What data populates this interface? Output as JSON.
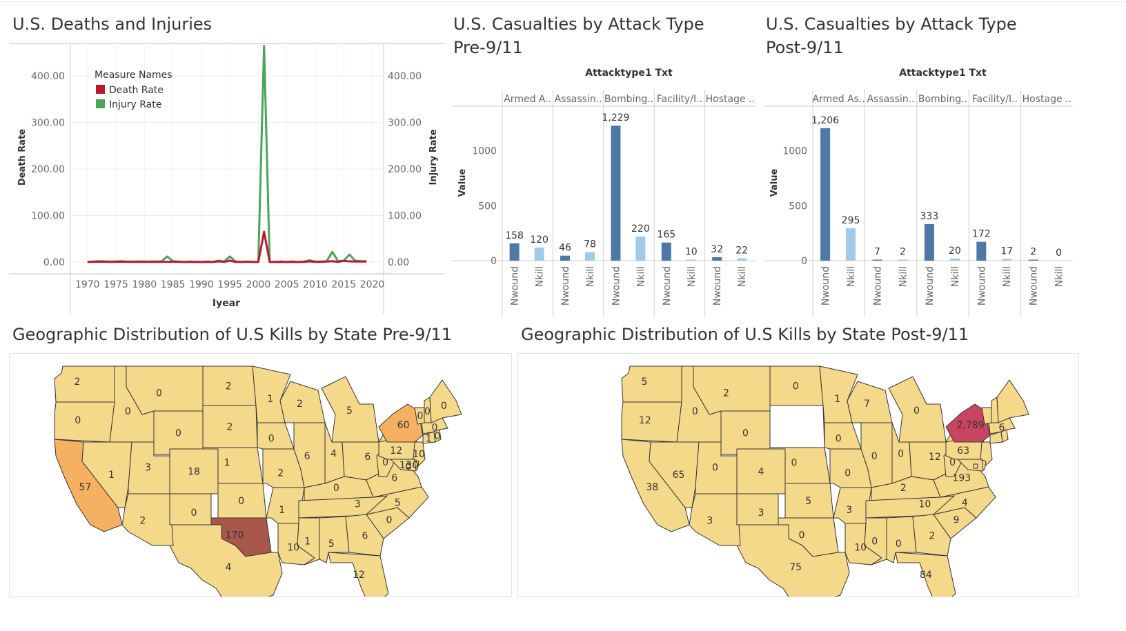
{
  "line_chart": {
    "title": "U.S. Deaths and Injuries",
    "legend_title": "Measure Names",
    "chart_data": {
      "type": "line",
      "title": "U.S. Deaths and Injuries",
      "xlabel": "Iyear",
      "ylabel": "Death Rate",
      "ylabel_right": "Injury Rate",
      "ylim": [
        0,
        470
      ],
      "xlim": [
        1967,
        2022
      ],
      "y_ticks": [
        "0.00",
        "100.00",
        "200.00",
        "300.00",
        "400.00"
      ],
      "y_tick_values": [
        0,
        100,
        200,
        300,
        400
      ],
      "x_ticks": [
        "1970",
        "1975",
        "1980",
        "1985",
        "1990",
        "1995",
        "2000",
        "2005",
        "2010",
        "2015",
        "2020"
      ],
      "x_tick_values": [
        1970,
        1975,
        1980,
        1985,
        1990,
        1995,
        2000,
        2005,
        2010,
        2015,
        2020
      ],
      "legend_position": "top-left",
      "grid": true,
      "series": [
        {
          "name": "Death Rate",
          "color": "#c0152f",
          "x": [
            1970,
            1971,
            1972,
            1973,
            1974,
            1975,
            1976,
            1977,
            1978,
            1979,
            1980,
            1981,
            1982,
            1983,
            1984,
            1985,
            1986,
            1987,
            1988,
            1989,
            1990,
            1991,
            1992,
            1993,
            1994,
            1995,
            1996,
            1997,
            1998,
            1999,
            2000,
            2001,
            2002,
            2003,
            2004,
            2005,
            2006,
            2007,
            2008,
            2009,
            2010,
            2011,
            2012,
            2013,
            2014,
            2015,
            2016,
            2017,
            2018,
            2019
          ],
          "values": [
            0.3,
            0.5,
            0.8,
            0.6,
            0.4,
            0.5,
            0.7,
            0.4,
            0.3,
            0.5,
            0.4,
            0.3,
            0.5,
            0.4,
            0.6,
            0.8,
            0.3,
            0.2,
            0.3,
            0.2,
            0.2,
            0.3,
            0.2,
            1.5,
            0.3,
            3,
            0.3,
            0.2,
            0.4,
            0.3,
            0.2,
            65,
            0.3,
            0.2,
            0.3,
            0.2,
            0.3,
            0.2,
            0.4,
            1.5,
            0.5,
            0.3,
            1,
            2,
            0.5,
            2.5,
            1.5,
            1.2,
            1,
            1.2
          ]
        },
        {
          "name": "Injury Rate",
          "color": "#4aa459",
          "x": [
            1970,
            1971,
            1972,
            1973,
            1974,
            1975,
            1976,
            1977,
            1978,
            1979,
            1980,
            1981,
            1982,
            1983,
            1984,
            1985,
            1986,
            1987,
            1988,
            1989,
            1990,
            1991,
            1992,
            1993,
            1994,
            1995,
            1996,
            1997,
            1998,
            1999,
            2000,
            2001,
            2002,
            2003,
            2004,
            2005,
            2006,
            2007,
            2008,
            2009,
            2010,
            2011,
            2012,
            2013,
            2014,
            2015,
            2016,
            2017,
            2018,
            2019
          ],
          "values": [
            0.5,
            1,
            2,
            1.5,
            1,
            1.5,
            2,
            1,
            1,
            1.5,
            1,
            1,
            1.5,
            1,
            12,
            2,
            1,
            0.5,
            1,
            0.5,
            0.5,
            1,
            0.5,
            3,
            1,
            12,
            1,
            0.5,
            1,
            0.5,
            0.5,
            465,
            0.5,
            0.5,
            1,
            0.5,
            1,
            0.5,
            1,
            4,
            1,
            1,
            2,
            22,
            2,
            3,
            16,
            3,
            2,
            2
          ]
        }
      ]
    }
  },
  "bar_pre": {
    "title": "U.S. Casualties by Attack Type Pre-9/11",
    "title_lines": [
      "U.S. Casualties by Attack Type",
      "Pre-9/11"
    ],
    "header": "Attacktype1 Txt",
    "chart_data": {
      "type": "bar",
      "title": "U.S. Casualties by Attack Type Pre-9/11",
      "ylabel": "Value",
      "ylim": [
        0,
        1400
      ],
      "y_ticks": [
        "0",
        "500",
        "1000"
      ],
      "y_tick_values": [
        0,
        500,
        1000
      ],
      "groups": [
        "Armed A..",
        "Assassin..",
        "Bombing..",
        "Facility/I..",
        "Hostage .."
      ],
      "measures": [
        "Nwound",
        "Nkill"
      ],
      "values": [
        [
          158,
          120
        ],
        [
          46,
          78
        ],
        [
          1229,
          220
        ],
        [
          165,
          10
        ],
        [
          32,
          22
        ]
      ],
      "labels": [
        [
          "158",
          "120"
        ],
        [
          "46",
          "78"
        ],
        [
          "1,229",
          "220"
        ],
        [
          "165",
          "10"
        ],
        [
          "32",
          "22"
        ]
      ],
      "colors": {
        "Nwound": "#4e79a7",
        "Nkill": "#a0cbe8"
      }
    }
  },
  "bar_post": {
    "title": "U.S. Casualties by Attack Type Post-9/11",
    "title_lines": [
      "U.S. Casualties by Attack Type",
      "Post-9/11"
    ],
    "header": "Attacktype1 Txt",
    "chart_data": {
      "type": "bar",
      "title": "U.S. Casualties by Attack Type Post-9/11",
      "ylabel": "Value",
      "ylim": [
        0,
        1400
      ],
      "y_ticks": [
        "0",
        "500",
        "1000"
      ],
      "y_tick_values": [
        0,
        500,
        1000
      ],
      "groups": [
        "Armed As..",
        "Assassin..",
        "Bombing..",
        "Facility/I..",
        "Hostage .."
      ],
      "measures": [
        "Nwound",
        "Nkill"
      ],
      "values": [
        [
          1206,
          295
        ],
        [
          7,
          2
        ],
        [
          333,
          20
        ],
        [
          172,
          17
        ],
        [
          2,
          0
        ]
      ],
      "labels": [
        [
          "1,206",
          "295"
        ],
        [
          "7",
          "2"
        ],
        [
          "333",
          "20"
        ],
        [
          "172",
          "17"
        ],
        [
          "2",
          "0"
        ]
      ],
      "colors": {
        "Nwound": "#4e79a7",
        "Nkill": "#a0cbe8"
      }
    }
  },
  "map_pre": {
    "title": "Geographic Distribution of U.S Kills by State Pre-9/11",
    "labels": [
      {
        "text": "2",
        "state": "WA"
      },
      {
        "text": "0",
        "state": "OR"
      },
      {
        "text": "0",
        "state": "ID"
      },
      {
        "text": "0",
        "state": "MT"
      },
      {
        "text": "0",
        "state": "WY"
      },
      {
        "text": "2",
        "state": "ND"
      },
      {
        "text": "2",
        "state": "SD"
      },
      {
        "text": "1",
        "state": "NE"
      },
      {
        "text": "0",
        "state": "KS"
      },
      {
        "text": "1",
        "state": "MN"
      },
      {
        "text": "0",
        "state": "IA"
      },
      {
        "text": "2",
        "state": "WI"
      },
      {
        "text": "5",
        "state": "MI"
      },
      {
        "text": "6",
        "state": "IL"
      },
      {
        "text": "4",
        "state": "IN"
      },
      {
        "text": "6",
        "state": "OH"
      },
      {
        "text": "12",
        "state": "PA"
      },
      {
        "text": "60",
        "state": "NY"
      },
      {
        "text": "0",
        "state": "VT"
      },
      {
        "text": "0",
        "state": "NH"
      },
      {
        "text": "0",
        "state": "ME"
      },
      {
        "text": "0",
        "state": "MA"
      },
      {
        "text": "1",
        "state": "CT"
      },
      {
        "text": "0",
        "state": "RI"
      },
      {
        "text": "10",
        "state": "NJ"
      },
      {
        "text": "57",
        "state": "CA"
      },
      {
        "text": "1",
        "state": "NV"
      },
      {
        "text": "3",
        "state": "UT"
      },
      {
        "text": "18",
        "state": "CO"
      },
      {
        "text": "2",
        "state": "AZ"
      },
      {
        "text": "0",
        "state": "NM"
      },
      {
        "text": "170",
        "state": "OK"
      },
      {
        "text": "4",
        "state": "TX"
      },
      {
        "text": "2",
        "state": "MO"
      },
      {
        "text": "1",
        "state": "AR"
      },
      {
        "text": "10",
        "state": "LA"
      },
      {
        "text": "1",
        "state": "MS"
      },
      {
        "text": "5",
        "state": "AL"
      },
      {
        "text": "6",
        "state": "GA"
      },
      {
        "text": "12",
        "state": "FL"
      },
      {
        "text": "3",
        "state": "TN"
      },
      {
        "text": "0",
        "state": "KY"
      },
      {
        "text": "6",
        "state": "VA"
      },
      {
        "text": "0",
        "state": "WV"
      },
      {
        "text": "5",
        "state": "NC"
      },
      {
        "text": "0",
        "state": "SC"
      },
      {
        "text": "0",
        "state": "DE"
      },
      {
        "text": "13",
        "state": "MD"
      },
      {
        "text": "0",
        "state": "DC"
      }
    ],
    "colors": {
      "low": "#f5d98a",
      "mid": "#f5b062",
      "high": "#a8574a"
    }
  },
  "map_post": {
    "title": "Geographic Distribution of U.S Kills by State Post-9/11",
    "labels": [
      {
        "text": "5",
        "state": "WA"
      },
      {
        "text": "12",
        "state": "OR"
      },
      {
        "text": "0",
        "state": "ID"
      },
      {
        "text": "2",
        "state": "MT"
      },
      {
        "text": "0",
        "state": "WY"
      },
      {
        "text": "0",
        "state": "ND"
      },
      {
        "text": "0",
        "state": "NE"
      },
      {
        "text": "5",
        "state": "KS"
      },
      {
        "text": "1",
        "state": "MN"
      },
      {
        "text": "0",
        "state": "IA"
      },
      {
        "text": "7",
        "state": "WI"
      },
      {
        "text": "0",
        "state": "MI"
      },
      {
        "text": "0",
        "state": "IL"
      },
      {
        "text": "0",
        "state": "IN"
      },
      {
        "text": "12",
        "state": "OH"
      },
      {
        "text": "63",
        "state": "PA"
      },
      {
        "text": "2,789",
        "state": "NY"
      },
      {
        "text": "6",
        "state": "MA"
      },
      {
        "text": "65",
        "state": "NV"
      },
      {
        "text": "38",
        "state": "CA"
      },
      {
        "text": "0",
        "state": "UT"
      },
      {
        "text": "4",
        "state": "CO"
      },
      {
        "text": "3",
        "state": "AZ"
      },
      {
        "text": "3",
        "state": "NM"
      },
      {
        "text": "0",
        "state": "OK"
      },
      {
        "text": "75",
        "state": "TX"
      },
      {
        "text": "0",
        "state": "MO"
      },
      {
        "text": "3",
        "state": "AR"
      },
      {
        "text": "10",
        "state": "LA"
      },
      {
        "text": "0",
        "state": "MS"
      },
      {
        "text": "0",
        "state": "AL"
      },
      {
        "text": "2",
        "state": "GA"
      },
      {
        "text": "84",
        "state": "FL"
      },
      {
        "text": "10",
        "state": "TN"
      },
      {
        "text": "2",
        "state": "KY"
      },
      {
        "text": "4",
        "state": "NC"
      },
      {
        "text": "9",
        "state": "SC"
      },
      {
        "text": "0",
        "state": "WV"
      },
      {
        "text": "193",
        "state": "VA"
      }
    ],
    "colors": {
      "low": "#f5d98a",
      "high": "#c74560",
      "missing": "#ffffff"
    }
  }
}
